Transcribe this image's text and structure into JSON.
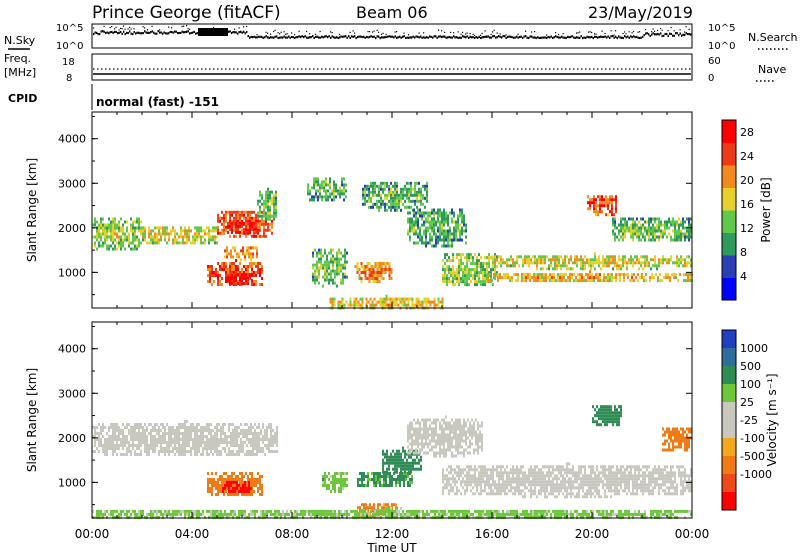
{
  "header": {
    "station": "Prince George (fitACF)",
    "beam": "Beam 06",
    "date": "23/May/2019"
  },
  "side_labels": {
    "nsky": "N.Sky",
    "nsearch": "N.Search",
    "freq_line1": "Freq.",
    "freq_line2": "[MHz]",
    "nave": "Nave",
    "cpid": "CPID",
    "nsky_top_tick": "10^5",
    "nsky_bottom_tick": "10^0",
    "nsearch_top_tick": "10^5",
    "nsearch_bottom_tick": "10^0",
    "freq_top_tick": "18",
    "freq_bottom_tick": "8",
    "nave_top_tick": "60",
    "nave_bottom_tick": "0"
  },
  "mode_label": "normal (fast) -151",
  "colors": {
    "power_scale": [
      "#0000ff",
      "#2b3fb5",
      "#2f9a5c",
      "#60c84a",
      "#e8d02a",
      "#f28a1e",
      "#ee3a17",
      "#ff0000"
    ],
    "velocity_scale": [
      "#1e3fbf",
      "#2f6e9a",
      "#2f8c55",
      "#6cc83a",
      "#c8c8bf",
      "#c8c8bf",
      "#f2a91e",
      "#f07a14",
      "#ee4a17",
      "#ff0000"
    ],
    "noise_line": "#000000"
  },
  "chart_data": [
    {
      "type": "heatmap",
      "name": "power",
      "xlabel": "",
      "ylabel": "Slant Range [km]",
      "yticks": [
        "1000",
        "2000",
        "3000",
        "4000"
      ],
      "ylim": [
        200,
        4600
      ],
      "xlim_hours": [
        0,
        24
      ],
      "colorbar": {
        "label": "Power [dB]",
        "ticks": [
          "4",
          "8",
          "12",
          "16",
          "20",
          "24",
          "28"
        ],
        "range": [
          0,
          30
        ]
      },
      "blobs": [
        {
          "t0": 0.0,
          "t1": 2.0,
          "r0": 1500,
          "r1": 2300,
          "level": 12
        },
        {
          "t0": 2.0,
          "t1": 5.0,
          "r0": 1650,
          "r1": 2100,
          "level": 14
        },
        {
          "t0": 5.0,
          "t1": 7.2,
          "r0": 1800,
          "r1": 2450,
          "level": 22
        },
        {
          "t0": 5.4,
          "t1": 6.6,
          "r0": 1900,
          "r1": 2200,
          "level": 26
        },
        {
          "t0": 4.6,
          "t1": 6.8,
          "r0": 700,
          "r1": 1300,
          "level": 22
        },
        {
          "t0": 5.4,
          "t1": 6.4,
          "r0": 750,
          "r1": 1050,
          "level": 28
        },
        {
          "t0": 5.2,
          "t1": 6.6,
          "r0": 1300,
          "r1": 1650,
          "level": 18
        },
        {
          "t0": 6.6,
          "t1": 7.4,
          "r0": 2200,
          "r1": 2900,
          "level": 10
        },
        {
          "t0": 8.6,
          "t1": 10.2,
          "r0": 2600,
          "r1": 3200,
          "level": 9
        },
        {
          "t0": 8.8,
          "t1": 10.2,
          "r0": 700,
          "r1": 1600,
          "level": 10
        },
        {
          "t0": 10.5,
          "t1": 12.0,
          "r0": 800,
          "r1": 1300,
          "level": 18
        },
        {
          "t0": 10.8,
          "t1": 13.4,
          "r0": 2400,
          "r1": 3100,
          "level": 9
        },
        {
          "t0": 12.6,
          "t1": 15.0,
          "r0": 1600,
          "r1": 2500,
          "level": 9
        },
        {
          "t0": 14.0,
          "t1": 16.2,
          "r0": 700,
          "r1": 1500,
          "level": 12
        },
        {
          "t0": 16.0,
          "t1": 24.0,
          "r0": 1100,
          "r1": 1450,
          "level": 14
        },
        {
          "t0": 15.8,
          "t1": 24.0,
          "r0": 800,
          "r1": 1050,
          "level": 16
        },
        {
          "t0": 19.8,
          "t1": 21.0,
          "r0": 2300,
          "r1": 2800,
          "level": 22
        },
        {
          "t0": 20.8,
          "t1": 24.0,
          "r0": 1700,
          "r1": 2300,
          "level": 10
        },
        {
          "t0": 9.5,
          "t1": 14.0,
          "r0": 200,
          "r1": 500,
          "level": 16
        }
      ]
    },
    {
      "type": "heatmap",
      "name": "velocity",
      "xlabel": "Time UT",
      "ylabel": "Slant Range [km]",
      "yticks": [
        "1000",
        "2000",
        "3000",
        "4000"
      ],
      "ylim": [
        200,
        4600
      ],
      "xlim_hours": [
        0,
        24
      ],
      "xticks": [
        "00:00",
        "04:00",
        "08:00",
        "12:00",
        "16:00",
        "20:00",
        "00:00"
      ],
      "colorbar": {
        "label": "Velocity [m s⁻¹]",
        "ticks": [
          "1000",
          "500",
          "100",
          "25",
          "-25",
          "-100",
          "-500",
          "-1000"
        ]
      },
      "blobs": [
        {
          "t0": 0.0,
          "t1": 7.4,
          "r0": 1600,
          "r1": 2400,
          "v": 0
        },
        {
          "t0": 4.6,
          "t1": 6.8,
          "r0": 700,
          "r1": 1300,
          "v": -300
        },
        {
          "t0": 5.2,
          "t1": 6.4,
          "r0": 800,
          "r1": 1100,
          "v": -700
        },
        {
          "t0": 9.2,
          "t1": 10.2,
          "r0": 800,
          "r1": 1300,
          "v": 60
        },
        {
          "t0": 10.6,
          "t1": 12.8,
          "r0": 900,
          "r1": 1300,
          "v": 150
        },
        {
          "t0": 11.6,
          "t1": 13.2,
          "r0": 1200,
          "r1": 1800,
          "v": 200
        },
        {
          "t0": 10.6,
          "t1": 12.2,
          "r0": 200,
          "r1": 600,
          "v": -150
        },
        {
          "t0": 12.6,
          "t1": 15.6,
          "r0": 1600,
          "r1": 2500,
          "v": 0
        },
        {
          "t0": 14.0,
          "t1": 24.0,
          "r0": 700,
          "r1": 1450,
          "v": 0
        },
        {
          "t0": 20.0,
          "t1": 21.2,
          "r0": 2300,
          "r1": 2800,
          "v": 250
        },
        {
          "t0": 22.8,
          "t1": 24.0,
          "r0": 1700,
          "r1": 2300,
          "v": -200
        },
        {
          "t0": 0.0,
          "t1": 24.0,
          "r0": 200,
          "r1": 450,
          "v": 50
        }
      ]
    }
  ]
}
